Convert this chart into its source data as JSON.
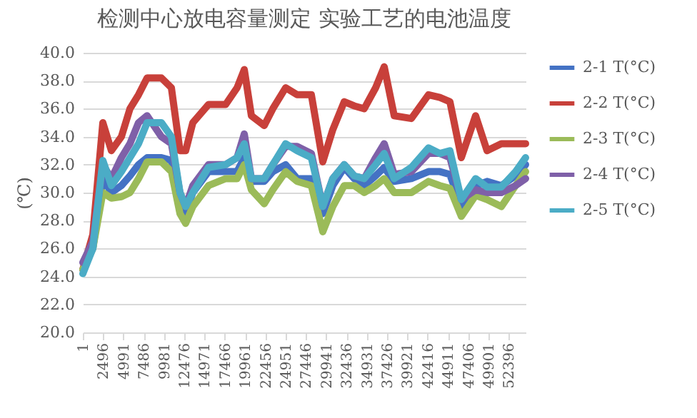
{
  "chart_data": {
    "type": "line",
    "title": "检测中心放电容量测定  实验工艺的电池温度",
    "ylabel": "(℃)",
    "x": [
      1,
      1231,
      2461,
      3515,
      4745,
      5799,
      6853,
      7908,
      9665,
      10894,
      11949,
      12651,
      13530,
      15463,
      17571,
      18977,
      19862,
      20734,
      22315,
      23369,
      24950,
      26356,
      28113,
      29519,
      30748,
      32154,
      33384,
      34614,
      36020,
      37074,
      38304,
      40412,
      42520,
      43926,
      45156,
      46562,
      48319,
      49724,
      51481,
      53238,
      54468
    ],
    "series": [
      {
        "name": "2-1 T(°C)",
        "color": "#4472c4",
        "values": [
          24.5,
          26,
          31,
          30,
          30.5,
          31.2,
          32,
          32.5,
          32.5,
          32.3,
          29.5,
          28.5,
          30,
          31.5,
          31.5,
          31.5,
          32.5,
          30.8,
          30.8,
          31.5,
          32,
          31,
          31,
          28.5,
          30.5,
          31.8,
          31,
          30.5,
          31.2,
          31.8,
          30.8,
          31,
          31.5,
          31.5,
          31.3,
          29,
          30.5,
          30.8,
          30.5,
          31.2,
          32
        ]
      },
      {
        "name": "2-2 T(°C)",
        "color": "#c8403a",
        "values": [
          24.5,
          27,
          35,
          33,
          34,
          36,
          37,
          38.2,
          38.2,
          37.5,
          33,
          33,
          35,
          36.3,
          36.3,
          37.5,
          38.8,
          35.5,
          34.8,
          36,
          37.5,
          37,
          37,
          32.2,
          34.5,
          36.5,
          36.2,
          36,
          37.5,
          39,
          35.5,
          35.3,
          37,
          36.8,
          36.5,
          32.5,
          35.5,
          33,
          33.5,
          33.5,
          33.5
        ]
      },
      {
        "name": "2-3 T(°C)",
        "color": "#9bbb59",
        "values": [
          24.5,
          26,
          30,
          29.6,
          29.7,
          30,
          31,
          32.2,
          32.2,
          31.5,
          28.5,
          27.8,
          29,
          30.5,
          31,
          31,
          32,
          30.2,
          29.2,
          30.2,
          31.5,
          30.8,
          30.5,
          27.2,
          29,
          30.5,
          30.5,
          30,
          30.5,
          31,
          30,
          30,
          30.8,
          30.5,
          30.3,
          28.3,
          29.8,
          29.5,
          29,
          30.5,
          31.5
        ]
      },
      {
        "name": "2-4 T(°C)",
        "color": "#7f60a8",
        "values": [
          25,
          26.5,
          32,
          31,
          32.5,
          33.5,
          35,
          35.5,
          34,
          33.5,
          30,
          29,
          30.5,
          32,
          32,
          32.5,
          34.2,
          31,
          31,
          32,
          33.3,
          33.3,
          32.8,
          29,
          31,
          32,
          31.2,
          31,
          32.5,
          33.5,
          31.3,
          31.5,
          32.8,
          32.8,
          32.5,
          29.5,
          30.2,
          30,
          30,
          30.5,
          31
        ]
      },
      {
        "name": "2-5 T(°C)",
        "color": "#4bacc6",
        "values": [
          24.2,
          26,
          32.3,
          30.5,
          31.5,
          32.5,
          33.5,
          35,
          35,
          34,
          30,
          29,
          30,
          31.8,
          32,
          32.5,
          33.5,
          31,
          31,
          32,
          33.5,
          33,
          32.5,
          29,
          31,
          32,
          31.2,
          31,
          32,
          32.8,
          31,
          31.8,
          33.2,
          32.8,
          33,
          29.5,
          31,
          30.4,
          30.4,
          31.5,
          32.5
        ]
      }
    ],
    "xlim": [
      1,
      54468
    ],
    "xticks": [
      1,
      2496,
      4991,
      7486,
      9981,
      12476,
      14971,
      17466,
      19961,
      22456,
      24951,
      27446,
      29941,
      32436,
      34931,
      37426,
      39921,
      42416,
      44911,
      47406,
      49901,
      52396
    ],
    "ylim": [
      20,
      40
    ],
    "yticks": [
      {
        "value": 20,
        "label": "20.0"
      },
      {
        "value": 22,
        "label": "22.0"
      },
      {
        "value": 24,
        "label": "24.0"
      },
      {
        "value": 26,
        "label": "26.0"
      },
      {
        "value": 28,
        "label": "28.0"
      },
      {
        "value": 30,
        "label": "30.0"
      },
      {
        "value": 32,
        "label": "32.0"
      },
      {
        "value": 34,
        "label": "34.0"
      },
      {
        "value": 36,
        "label": "36.0"
      },
      {
        "value": 38,
        "label": "38.0"
      },
      {
        "value": 40,
        "label": "40.0"
      }
    ],
    "grid": "y",
    "legend": "right",
    "marker": "none",
    "line_style": "solid"
  }
}
